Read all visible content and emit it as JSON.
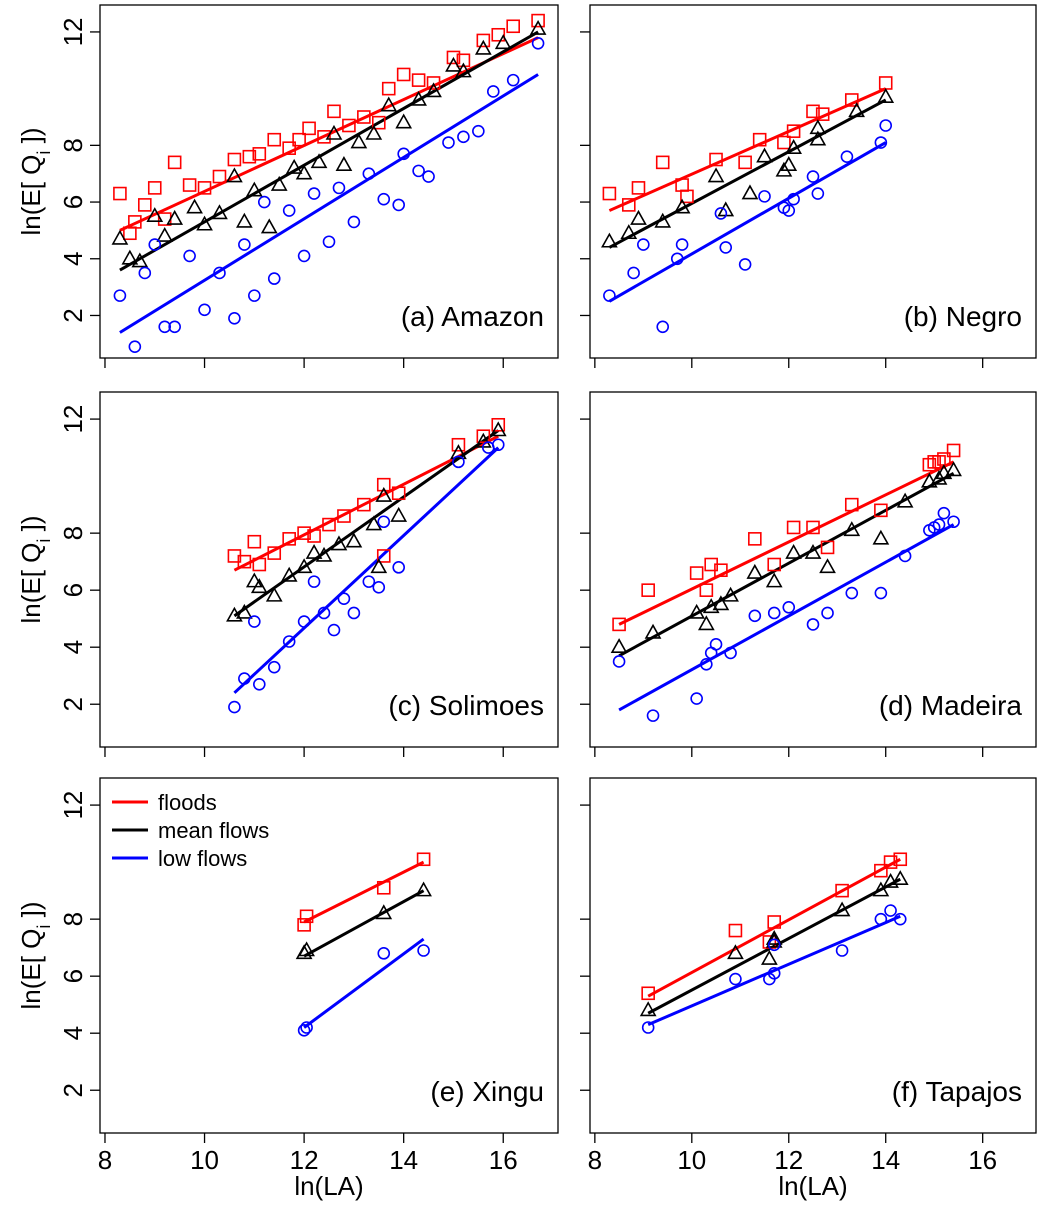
{
  "chart_data": [
    {
      "type": "scatter",
      "title": "(a) Amazon",
      "ylabel": [
        "ln(E[ Q",
        "i",
        " ])"
      ],
      "xlim": [
        7.9,
        17.1
      ],
      "ylim": [
        0.5,
        12.95
      ],
      "xticks": [
        8,
        10,
        12,
        14,
        16
      ],
      "yticks": [
        2,
        4,
        6,
        8,
        12
      ],
      "series": [
        {
          "color": "#ff0000",
          "marker": "square",
          "x": [
            8.3,
            8.5,
            8.6,
            8.8,
            9.0,
            9.2,
            9.4,
            9.7,
            10.0,
            10.3,
            10.6,
            10.9,
            11.1,
            11.4,
            11.7,
            11.9,
            12.1,
            12.4,
            12.6,
            12.9,
            13.2,
            13.5,
            13.7,
            14.0,
            14.3,
            14.6,
            15.0,
            15.2,
            15.6,
            15.9,
            16.2,
            16.7
          ],
          "values": [
            6.3,
            4.9,
            5.3,
            5.9,
            6.5,
            5.4,
            7.4,
            6.6,
            6.5,
            6.9,
            7.5,
            7.6,
            7.7,
            8.2,
            7.9,
            8.2,
            8.6,
            8.3,
            9.2,
            8.7,
            9.0,
            8.8,
            10.0,
            10.5,
            10.3,
            10.2,
            11.1,
            11.0,
            11.7,
            11.9,
            12.2,
            12.4
          ]
        },
        {
          "color": "#000000",
          "marker": "triangle",
          "x": [
            8.3,
            8.5,
            8.7,
            9.0,
            9.2,
            9.4,
            9.8,
            10.0,
            10.3,
            10.6,
            10.8,
            11.0,
            11.3,
            11.5,
            11.8,
            12.0,
            12.3,
            12.6,
            12.8,
            13.1,
            13.4,
            13.7,
            14.0,
            14.3,
            14.6,
            15.0,
            15.2,
            15.6,
            16.0,
            16.7
          ],
          "values": [
            4.7,
            4.0,
            3.9,
            5.5,
            4.8,
            5.4,
            5.8,
            5.2,
            5.6,
            6.9,
            5.3,
            6.4,
            5.1,
            6.6,
            7.2,
            7.0,
            7.4,
            8.4,
            7.3,
            8.1,
            8.4,
            9.4,
            8.8,
            9.6,
            9.9,
            10.8,
            10.6,
            11.4,
            11.6,
            12.1
          ]
        },
        {
          "color": "#0000ff",
          "marker": "circle",
          "x": [
            8.3,
            8.6,
            8.8,
            9.0,
            9.2,
            9.4,
            9.7,
            10.0,
            10.3,
            10.6,
            10.8,
            11.0,
            11.2,
            11.4,
            11.7,
            12.0,
            12.2,
            12.5,
            12.7,
            13.0,
            13.3,
            13.6,
            13.9,
            14.0,
            14.3,
            14.5,
            14.9,
            15.2,
            15.5,
            15.8,
            16.2,
            16.7
          ],
          "values": [
            2.7,
            0.9,
            3.5,
            4.5,
            1.6,
            1.6,
            4.1,
            2.2,
            3.5,
            1.9,
            4.5,
            2.7,
            6.0,
            3.3,
            5.7,
            4.1,
            6.3,
            4.6,
            6.5,
            5.3,
            7.0,
            6.1,
            5.9,
            7.7,
            7.1,
            6.9,
            8.1,
            8.3,
            8.5,
            9.9,
            10.3,
            11.6
          ]
        }
      ],
      "fits": [
        {
          "color": "#ff0000",
          "x": [
            8.3,
            16.7
          ],
          "values": [
            5.0,
            11.8
          ]
        },
        {
          "color": "#000000",
          "x": [
            8.3,
            16.7
          ],
          "values": [
            3.6,
            12.0
          ]
        },
        {
          "color": "#0000ff",
          "x": [
            8.3,
            16.7
          ],
          "values": [
            1.4,
            10.5
          ]
        }
      ]
    },
    {
      "type": "scatter",
      "title": "(b) Negro",
      "xlim": [
        7.9,
        17.1
      ],
      "ylim": [
        0.5,
        12.95
      ],
      "xticks": [
        8,
        10,
        12,
        14,
        16
      ],
      "yticks": [
        2,
        4,
        6,
        8,
        12
      ],
      "series": [
        {
          "color": "#ff0000",
          "marker": "square",
          "x": [
            8.3,
            8.7,
            8.9,
            9.4,
            9.8,
            9.9,
            10.5,
            11.1,
            11.4,
            11.9,
            12.1,
            12.5,
            12.7,
            13.3,
            14.0
          ],
          "values": [
            6.3,
            5.9,
            6.5,
            7.4,
            6.6,
            6.2,
            7.5,
            7.4,
            8.2,
            8.1,
            8.5,
            9.2,
            9.1,
            9.6,
            10.2
          ]
        },
        {
          "color": "#000000",
          "marker": "triangle",
          "x": [
            8.3,
            8.7,
            8.9,
            9.4,
            9.8,
            10.5,
            10.7,
            11.2,
            11.5,
            11.9,
            12.0,
            12.1,
            12.6,
            12.6,
            13.4,
            14.0
          ],
          "values": [
            4.6,
            4.9,
            5.4,
            5.3,
            5.8,
            6.9,
            5.7,
            6.3,
            7.6,
            7.1,
            7.3,
            7.9,
            8.2,
            8.6,
            9.2,
            9.7
          ]
        },
        {
          "color": "#0000ff",
          "marker": "circle",
          "x": [
            8.3,
            8.8,
            9.0,
            9.4,
            9.8,
            9.7,
            10.6,
            10.7,
            11.1,
            11.5,
            11.9,
            12.0,
            12.1,
            12.6,
            12.5,
            13.2,
            13.9,
            14.0
          ],
          "values": [
            2.7,
            3.5,
            4.5,
            1.6,
            4.5,
            4.0,
            5.6,
            4.4,
            3.8,
            6.2,
            5.8,
            5.7,
            6.1,
            6.3,
            6.9,
            7.6,
            8.1,
            8.7
          ]
        }
      ],
      "fits": [
        {
          "color": "#ff0000",
          "x": [
            8.3,
            14.0
          ],
          "values": [
            5.7,
            10.0
          ]
        },
        {
          "color": "#000000",
          "x": [
            8.3,
            14.0
          ],
          "values": [
            4.4,
            9.6
          ]
        },
        {
          "color": "#0000ff",
          "x": [
            8.3,
            14.0
          ],
          "values": [
            2.5,
            8.1
          ]
        }
      ]
    },
    {
      "type": "scatter",
      "title": "(c) Solimoes",
      "ylabel": [
        "ln(E[ Q",
        "i",
        " ])"
      ],
      "xlim": [
        7.9,
        17.1
      ],
      "ylim": [
        0.5,
        12.95
      ],
      "xticks": [
        8,
        10,
        12,
        14,
        16
      ],
      "yticks": [
        2,
        4,
        6,
        8,
        12
      ],
      "series": [
        {
          "color": "#ff0000",
          "marker": "square",
          "x": [
            10.6,
            10.8,
            11.0,
            11.1,
            11.4,
            11.7,
            12.0,
            12.2,
            12.5,
            12.8,
            13.2,
            13.6,
            13.9,
            15.1,
            15.6,
            15.9,
            13.6
          ],
          "values": [
            7.2,
            7.0,
            7.7,
            6.9,
            7.3,
            7.8,
            8.0,
            7.9,
            8.3,
            8.6,
            9.0,
            9.7,
            9.4,
            11.1,
            11.4,
            11.8,
            7.2
          ]
        },
        {
          "color": "#000000",
          "marker": "triangle",
          "x": [
            10.6,
            10.8,
            11.0,
            11.1,
            11.4,
            11.7,
            12.0,
            12.2,
            12.4,
            12.7,
            13.0,
            13.4,
            13.6,
            13.9,
            13.5,
            15.1,
            15.6,
            15.9
          ],
          "values": [
            5.1,
            5.2,
            6.3,
            6.1,
            5.8,
            6.5,
            6.8,
            7.3,
            7.2,
            7.6,
            7.7,
            8.3,
            9.3,
            8.6,
            6.8,
            10.8,
            11.2,
            11.6
          ]
        },
        {
          "color": "#0000ff",
          "marker": "circle",
          "x": [
            10.6,
            10.8,
            11.0,
            11.1,
            11.4,
            11.7,
            12.0,
            12.2,
            12.4,
            12.6,
            12.8,
            13.0,
            13.3,
            13.5,
            13.6,
            13.9,
            15.1,
            15.7,
            15.9
          ],
          "values": [
            1.9,
            2.9,
            4.9,
            2.7,
            3.3,
            4.2,
            4.9,
            6.3,
            5.2,
            4.6,
            5.7,
            5.2,
            6.3,
            6.1,
            8.4,
            6.8,
            10.5,
            11.0,
            11.1
          ]
        }
      ],
      "fits": [
        {
          "color": "#ff0000",
          "x": [
            10.6,
            15.9
          ],
          "values": [
            6.7,
            11.4
          ]
        },
        {
          "color": "#000000",
          "x": [
            10.6,
            15.9
          ],
          "values": [
            5.1,
            11.6
          ]
        },
        {
          "color": "#0000ff",
          "x": [
            10.6,
            15.9
          ],
          "values": [
            2.4,
            11.0
          ]
        }
      ]
    },
    {
      "type": "scatter",
      "title": "(d) Madeira",
      "xlim": [
        7.9,
        17.1
      ],
      "ylim": [
        0.5,
        12.95
      ],
      "xticks": [
        8,
        10,
        12,
        14,
        16
      ],
      "yticks": [
        2,
        4,
        6,
        8,
        12
      ],
      "series": [
        {
          "color": "#ff0000",
          "marker": "square",
          "x": [
            8.5,
            9.1,
            10.1,
            10.3,
            10.4,
            10.6,
            11.3,
            11.7,
            12.1,
            12.5,
            12.8,
            13.3,
            13.9,
            14.9,
            15.0,
            15.1,
            15.2,
            15.4
          ],
          "values": [
            4.8,
            6.0,
            6.6,
            6.0,
            6.9,
            6.7,
            7.8,
            6.9,
            8.2,
            8.2,
            7.5,
            9.0,
            8.8,
            10.4,
            10.5,
            10.5,
            10.6,
            10.9
          ]
        },
        {
          "color": "#000000",
          "marker": "triangle",
          "x": [
            8.5,
            9.2,
            10.1,
            10.3,
            10.4,
            10.6,
            10.8,
            11.3,
            11.7,
            12.1,
            12.5,
            12.8,
            13.3,
            13.9,
            14.4,
            14.9,
            15.1,
            15.2,
            15.4
          ],
          "values": [
            4.0,
            4.5,
            5.2,
            4.8,
            5.4,
            5.5,
            5.8,
            6.6,
            6.3,
            7.3,
            7.3,
            6.8,
            8.1,
            7.8,
            9.1,
            9.8,
            9.9,
            10.1,
            10.2
          ]
        },
        {
          "color": "#0000ff",
          "marker": "circle",
          "x": [
            8.5,
            9.2,
            10.1,
            10.3,
            10.4,
            10.5,
            10.8,
            11.3,
            11.7,
            12.0,
            12.5,
            12.8,
            13.3,
            13.9,
            14.4,
            14.9,
            15.0,
            15.1,
            15.2,
            15.4
          ],
          "values": [
            3.5,
            1.6,
            2.2,
            3.4,
            3.8,
            4.1,
            3.8,
            5.1,
            5.2,
            5.4,
            4.8,
            5.2,
            5.9,
            5.9,
            7.2,
            8.1,
            8.2,
            8.3,
            8.7,
            8.4
          ]
        }
      ],
      "fits": [
        {
          "color": "#ff0000",
          "x": [
            8.5,
            15.4
          ],
          "values": [
            4.8,
            10.5
          ]
        },
        {
          "color": "#000000",
          "x": [
            8.5,
            15.4
          ],
          "values": [
            3.7,
            10.1
          ]
        },
        {
          "color": "#0000ff",
          "x": [
            8.5,
            15.4
          ],
          "values": [
            1.8,
            8.3
          ]
        }
      ]
    },
    {
      "type": "scatter",
      "title": "(e) Xingu",
      "ylabel": [
        "ln(E[ Q",
        "i",
        " ])"
      ],
      "xlabel": "ln(LA)",
      "legend": "top left",
      "xlim": [
        7.9,
        17.1
      ],
      "ylim": [
        0.5,
        12.95
      ],
      "xticks": [
        8,
        10,
        12,
        14,
        16
      ],
      "yticks": [
        2,
        4,
        6,
        8,
        12
      ],
      "series": [
        {
          "name": "floods",
          "color": "#ff0000",
          "marker": "square",
          "x": [
            12.0,
            12.05,
            13.6,
            14.4
          ],
          "values": [
            7.8,
            8.1,
            9.1,
            10.1
          ]
        },
        {
          "name": "mean flows",
          "color": "#000000",
          "marker": "triangle",
          "x": [
            12.0,
            12.05,
            13.6,
            14.4
          ],
          "values": [
            6.8,
            6.9,
            8.2,
            9.0
          ]
        },
        {
          "name": "low flows",
          "color": "#0000ff",
          "marker": "circle",
          "x": [
            12.0,
            12.05,
            13.6,
            14.4
          ],
          "values": [
            4.1,
            4.2,
            6.8,
            6.9
          ]
        }
      ],
      "fits": [
        {
          "color": "#ff0000",
          "x": [
            12.0,
            14.4
          ],
          "values": [
            7.9,
            10.0
          ]
        },
        {
          "color": "#000000",
          "x": [
            12.0,
            14.4
          ],
          "values": [
            6.7,
            9.0
          ]
        },
        {
          "color": "#0000ff",
          "x": [
            12.0,
            14.4
          ],
          "values": [
            4.2,
            7.3
          ]
        }
      ]
    },
    {
      "type": "scatter",
      "title": "(f) Tapajos",
      "xlabel": "ln(LA)",
      "xlim": [
        7.9,
        17.1
      ],
      "ylim": [
        0.5,
        12.95
      ],
      "xticks": [
        8,
        10,
        12,
        14,
        16
      ],
      "yticks": [
        2,
        4,
        6,
        8,
        12
      ],
      "series": [
        {
          "color": "#ff0000",
          "marker": "square",
          "x": [
            9.1,
            10.9,
            11.6,
            11.7,
            13.1,
            13.9,
            14.1,
            14.3
          ],
          "values": [
            5.4,
            7.6,
            7.2,
            7.9,
            9.0,
            9.7,
            10.0,
            10.1
          ]
        },
        {
          "color": "#000000",
          "marker": "triangle",
          "x": [
            9.1,
            10.9,
            11.6,
            11.7,
            11.7,
            13.1,
            13.9,
            14.1,
            14.3
          ],
          "values": [
            4.8,
            6.8,
            6.6,
            7.2,
            7.3,
            8.3,
            9.0,
            9.3,
            9.4
          ]
        },
        {
          "color": "#0000ff",
          "marker": "circle",
          "x": [
            9.1,
            10.9,
            11.6,
            11.7,
            11.7,
            13.1,
            13.9,
            14.1,
            14.3
          ],
          "values": [
            4.2,
            5.9,
            5.9,
            6.1,
            7.1,
            6.9,
            8.0,
            8.3,
            8.0
          ]
        }
      ],
      "fits": [
        {
          "color": "#ff0000",
          "x": [
            9.1,
            14.3
          ],
          "values": [
            5.3,
            10.1
          ]
        },
        {
          "color": "#000000",
          "x": [
            9.1,
            14.3
          ],
          "values": [
            4.7,
            9.4
          ]
        },
        {
          "color": "#0000ff",
          "x": [
            9.1,
            14.3
          ],
          "values": [
            4.3,
            8.1
          ]
        }
      ]
    }
  ]
}
